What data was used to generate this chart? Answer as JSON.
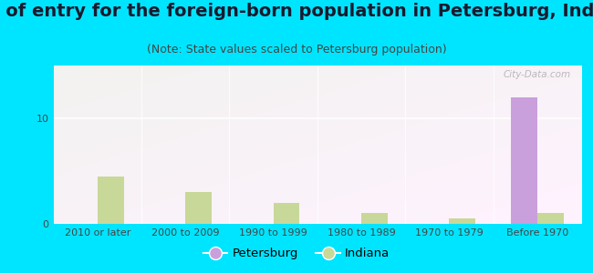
{
  "title": "Year of entry for the foreign-born population in Petersburg, Indiana",
  "subtitle": "(Note: State values scaled to Petersburg population)",
  "categories": [
    "2010 or later",
    "2000 to 2009",
    "1990 to 1999",
    "1980 to 1989",
    "1970 to 1979",
    "Before 1970"
  ],
  "petersburg_values": [
    0,
    0,
    0,
    0,
    0,
    12
  ],
  "indiana_values": [
    4.5,
    3.0,
    2.0,
    1.0,
    0.5,
    1.0
  ],
  "petersburg_color": "#c9a0dc",
  "indiana_color": "#c8d898",
  "background_outer": "#00e5ff",
  "ylim": [
    0,
    15
  ],
  "yticks": [
    0,
    10
  ],
  "bar_width": 0.3,
  "legend_petersburg_label": "Petersburg",
  "legend_indiana_label": "Indiana",
  "title_fontsize": 14,
  "subtitle_fontsize": 9,
  "tick_fontsize": 8,
  "watermark": "City-Data.com"
}
